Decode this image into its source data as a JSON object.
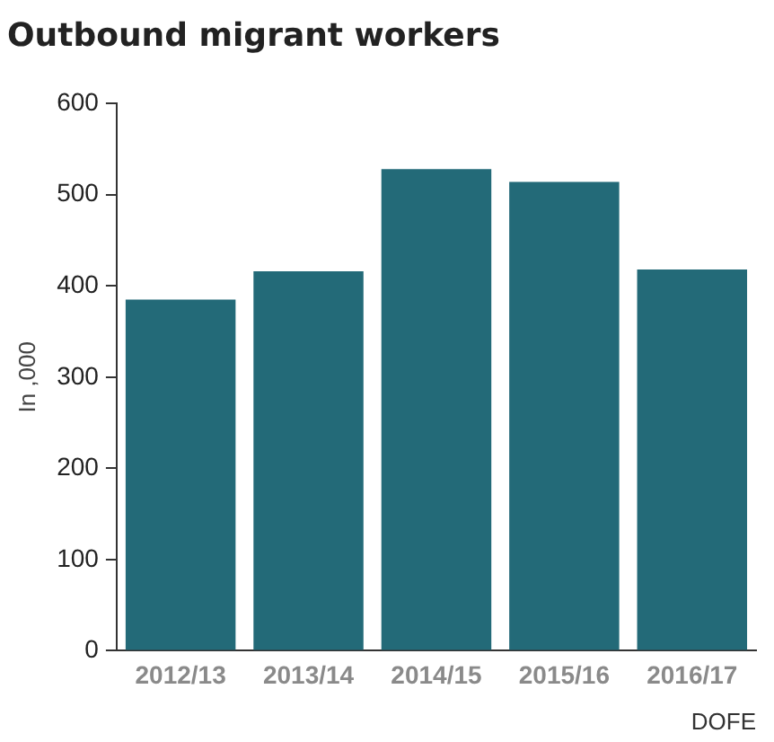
{
  "chart_data": {
    "type": "bar",
    "title": "Outbound migrant workers",
    "ylabel": "In ,000",
    "categories": [
      "2012/13",
      "2013/14",
      "2014/15",
      "2015/16",
      "2016/17"
    ],
    "values": [
      385,
      416,
      528,
      514,
      418
    ],
    "color": "#236a78",
    "ylim": [
      0,
      600
    ],
    "yticks": [
      0,
      100,
      200,
      300,
      400,
      500,
      600
    ],
    "grid": false,
    "annotations": [
      "DOFE"
    ]
  }
}
